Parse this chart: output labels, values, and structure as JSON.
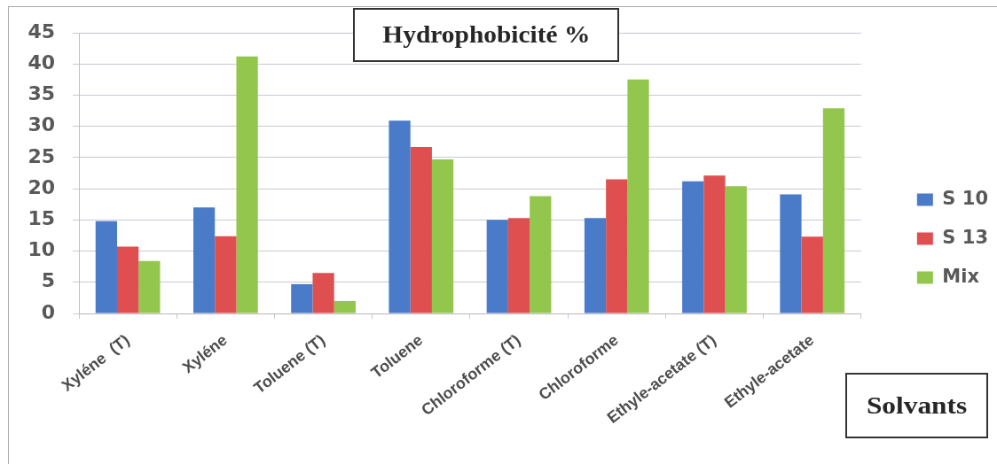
{
  "chart_data": {
    "type": "bar",
    "title": "Hydrophobicité %",
    "xlabel": "Solvants",
    "categories": [
      "Xyléne  (T)",
      "Xyléne",
      "Toluene (T)",
      "Toluene",
      "Chloroforme (T)",
      "Chloroforme",
      "Ethyle-acetate (T)",
      "Ethyle-acetate"
    ],
    "series": [
      {
        "name": "S 10",
        "color": "#4a7bc8",
        "values": [
          14.8,
          17.0,
          4.7,
          30.9,
          15.0,
          15.3,
          21.2,
          19.1
        ]
      },
      {
        "name": "S 13",
        "color": "#e04f4f",
        "values": [
          10.7,
          12.4,
          6.5,
          26.7,
          15.3,
          21.5,
          22.1,
          12.3
        ]
      },
      {
        "name": "Mix",
        "color": "#93c64c",
        "values": [
          8.4,
          41.2,
          2.0,
          24.7,
          18.8,
          37.5,
          20.4,
          32.9
        ]
      }
    ],
    "ylim": [
      0,
      45
    ],
    "yticks": [
      0,
      5,
      10,
      15,
      20,
      25,
      30,
      35,
      40,
      45
    ],
    "grid": "y",
    "legend": "right"
  }
}
